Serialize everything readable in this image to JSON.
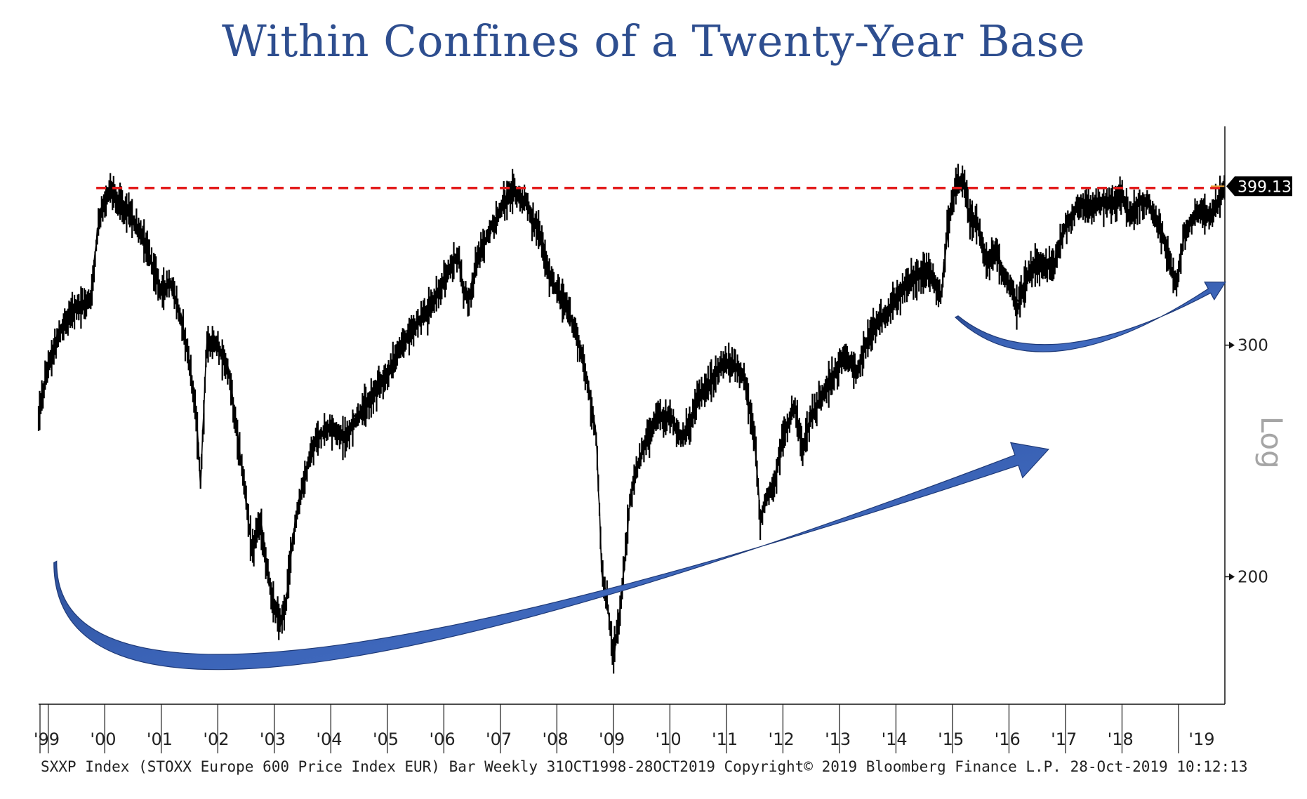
{
  "title": "Within Confines of a Twenty-Year Base",
  "footer": "SXXP Index (STOXX Europe 600 Price Index EUR) Bar  Weekly 31OCT1998-28OCT2019 Copyright© 2019 Bloomberg Finance L.P. 28-Oct-2019 10:12:13",
  "colors": {
    "price": "#000000",
    "resistance": "#e31b1b",
    "arrow_fill": "#3a62b5",
    "arrow_dark": "#1f3a78",
    "last_tag_bg": "#000000",
    "last_line": "#e8a13a",
    "title": "#2e4e8f"
  },
  "chart_data": {
    "type": "line",
    "series": [
      {
        "name": "",
        "x": [
          1998.83,
          1999.0,
          1999.25,
          1999.5,
          1999.75,
          1999.9,
          2000.1,
          2000.25,
          2000.4,
          2000.55,
          2000.7,
          2000.85,
          2001.0,
          2001.15,
          2001.3,
          2001.45,
          2001.6,
          2001.7,
          2001.8,
          2002.0,
          2002.2,
          2002.35,
          2002.5,
          2002.6,
          2002.75,
          2002.9,
          2003.0,
          2003.1,
          2003.2,
          2003.3,
          2003.5,
          2003.75,
          2004.0,
          2004.25,
          2004.5,
          2004.75,
          2005.0,
          2005.25,
          2005.5,
          2005.75,
          2006.0,
          2006.25,
          2006.35,
          2006.45,
          2006.6,
          2006.8,
          2007.0,
          2007.2,
          2007.3,
          2007.45,
          2007.55,
          2007.7,
          2007.85,
          2008.0,
          2008.2,
          2008.4,
          2008.55,
          2008.7,
          2008.8,
          2008.9,
          2009.0,
          2009.1,
          2009.2,
          2009.3,
          2009.45,
          2009.6,
          2009.8,
          2010.0,
          2010.2,
          2010.35,
          2010.5,
          2010.7,
          2010.9,
          2011.1,
          2011.3,
          2011.5,
          2011.6,
          2011.7,
          2011.85,
          2012.0,
          2012.2,
          2012.35,
          2012.5,
          2012.7,
          2012.9,
          2013.1,
          2013.3,
          2013.45,
          2013.6,
          2013.8,
          2014.0,
          2014.2,
          2014.4,
          2014.6,
          2014.8,
          2014.9,
          2015.05,
          2015.2,
          2015.3,
          2015.45,
          2015.6,
          2015.75,
          2015.9,
          2016.05,
          2016.15,
          2016.3,
          2016.45,
          2016.6,
          2016.8,
          2016.95,
          2017.1,
          2017.25,
          2017.4,
          2017.55,
          2017.7,
          2017.85,
          2018.0,
          2018.15,
          2018.3,
          2018.45,
          2018.6,
          2018.75,
          2018.9,
          2018.98,
          2019.1,
          2019.25,
          2019.4,
          2019.55,
          2019.7,
          2019.82
        ],
        "y": [
          265,
          290,
          310,
          320,
          325,
          375,
          395,
          385,
          380,
          370,
          360,
          345,
          330,
          335,
          320,
          300,
          270,
          235,
          300,
          300,
          285,
          255,
          230,
          210,
          220,
          200,
          190,
          185,
          190,
          210,
          235,
          255,
          260,
          255,
          265,
          275,
          285,
          300,
          310,
          320,
          335,
          352,
          330,
          325,
          350,
          365,
          380,
          395,
          390,
          385,
          375,
          365,
          340,
          330,
          320,
          300,
          280,
          255,
          200,
          190,
          175,
          185,
          205,
          230,
          245,
          255,
          265,
          265,
          255,
          260,
          275,
          280,
          290,
          290,
          285,
          255,
          220,
          230,
          235,
          255,
          270,
          250,
          265,
          275,
          285,
          295,
          285,
          300,
          310,
          315,
          325,
          335,
          340,
          340,
          325,
          365,
          395,
          400,
          375,
          370,
          345,
          355,
          340,
          330,
          320,
          335,
          345,
          345,
          345,
          365,
          375,
          385,
          380,
          385,
          385,
          385,
          390,
          375,
          385,
          385,
          375,
          360,
          340,
          335,
          365,
          375,
          380,
          375,
          385,
          399.13
        ]
      }
    ],
    "resistance_level": 395,
    "last_value": 399.13,
    "x_tick_labels": [
      "'99",
      "'00",
      "'01",
      "'02",
      "'03",
      "'04",
      "'05",
      "'06",
      "'07",
      "'08",
      "'09",
      "'10",
      "'11",
      "'12",
      "'13",
      "'14",
      "'15",
      "'16",
      "'17",
      "'18",
      "'19"
    ],
    "y_ticks": [
      200,
      300
    ],
    "y_tick_labels": [
      "200",
      "300"
    ],
    "xlim": [
      1998.83,
      2019.82
    ],
    "ylim": [
      160,
      440
    ],
    "y_scale": "log",
    "y_axis_label": "Log",
    "y_axis_side": "right",
    "annotations": [
      {
        "type": "curved-arrow",
        "from": [
          1999.1,
          205
        ],
        "via": [
          2003.5,
          177
        ],
        "to": [
          2016.7,
          250
        ]
      },
      {
        "type": "curved-arrow",
        "from": [
          2015.05,
          315
        ],
        "via": [
          2017.0,
          302
        ],
        "to": [
          2019.83,
          335
        ]
      }
    ]
  }
}
